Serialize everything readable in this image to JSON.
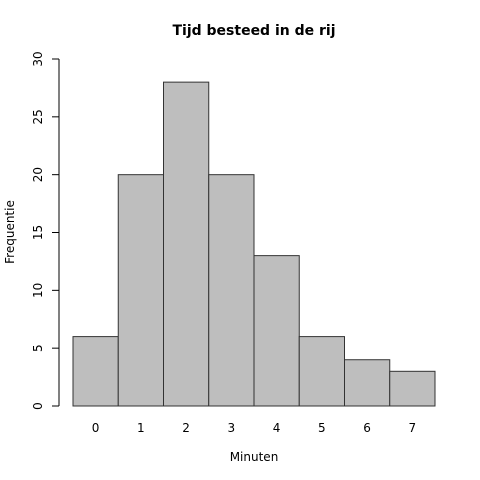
{
  "chart_data": {
    "type": "bar",
    "title": "Tijd besteed in de rij",
    "xlabel": "Minuten",
    "ylabel": "Frequentie",
    "categories": [
      "0",
      "1",
      "2",
      "3",
      "4",
      "5",
      "6",
      "7"
    ],
    "values": [
      6,
      20,
      28,
      20,
      13,
      6,
      4,
      3
    ],
    "ylim": [
      0,
      30
    ],
    "yticks": [
      0,
      5,
      10,
      15,
      20,
      25,
      30
    ],
    "bar_color": "#bebebe",
    "border_color": "#333333",
    "grid": false,
    "legend": "none"
  }
}
